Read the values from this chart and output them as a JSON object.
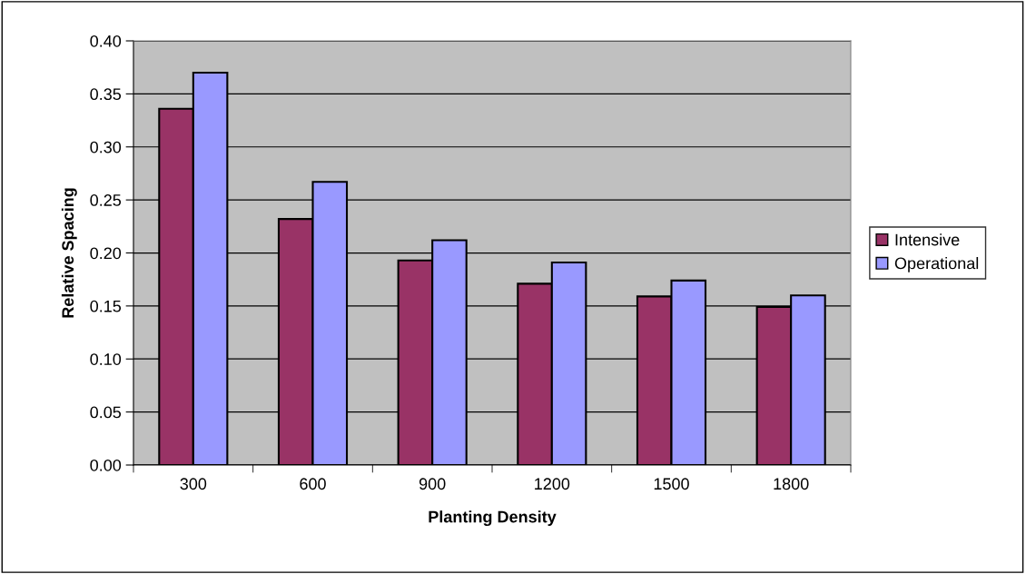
{
  "chart_data": {
    "type": "bar",
    "xlabel": "Planting Density",
    "ylabel": "Relative Spacing",
    "categories": [
      "300",
      "600",
      "900",
      "1200",
      "1500",
      "1800"
    ],
    "series": [
      {
        "name": "Intensive",
        "color": "#993366",
        "values": [
          0.336,
          0.232,
          0.193,
          0.171,
          0.159,
          0.149
        ]
      },
      {
        "name": "Operational",
        "color": "#9999ff",
        "values": [
          0.37,
          0.267,
          0.212,
          0.191,
          0.174,
          0.16
        ]
      }
    ],
    "ylim": [
      0,
      0.4
    ],
    "yticks": [
      {
        "value": 0,
        "label": "0.00"
      },
      {
        "value": 0.05,
        "label": "0.05"
      },
      {
        "value": 0.1,
        "label": "0.10"
      },
      {
        "value": 0.15,
        "label": "0.15"
      },
      {
        "value": 0.2,
        "label": "0.20"
      },
      {
        "value": 0.25,
        "label": "0.25"
      },
      {
        "value": 0.3,
        "label": "0.30"
      },
      {
        "value": 0.35,
        "label": "0.35"
      },
      {
        "value": 0.4,
        "label": "0.40"
      }
    ],
    "grid": "y",
    "legend": "right"
  }
}
